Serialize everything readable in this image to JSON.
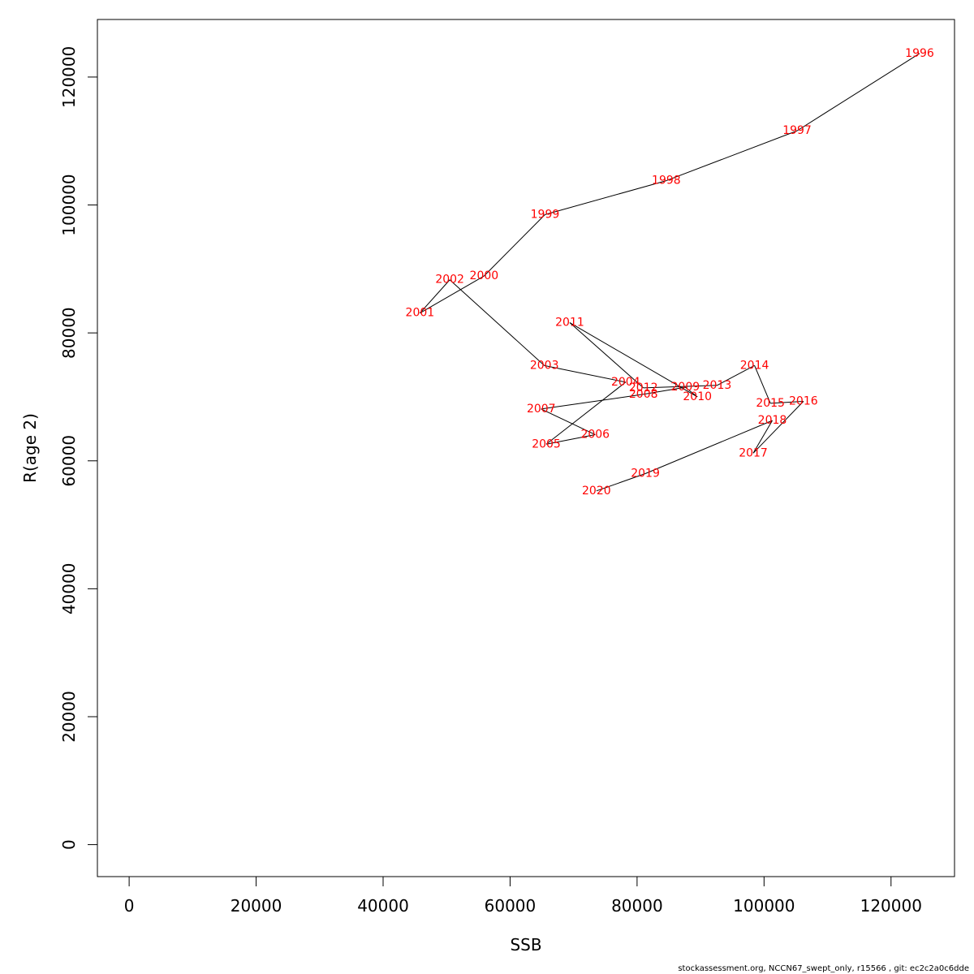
{
  "chart_data": {
    "type": "line",
    "xlabel": "SSB",
    "ylabel": "R(age 2)",
    "xlim": [
      -5000,
      130000
    ],
    "ylim": [
      -5000,
      129000
    ],
    "x_ticks": [
      0,
      20000,
      40000,
      60000,
      80000,
      100000,
      120000
    ],
    "y_ticks": [
      0,
      20000,
      40000,
      60000,
      80000,
      100000,
      120000
    ],
    "grid": false,
    "line_color": "#000000",
    "label_color": "#ff0000",
    "points": [
      {
        "label": "1996",
        "x": 124500,
        "y": 123700
      },
      {
        "label": "1997",
        "x": 105200,
        "y": 111600
      },
      {
        "label": "1998",
        "x": 84600,
        "y": 103800
      },
      {
        "label": "1999",
        "x": 65500,
        "y": 98500
      },
      {
        "label": "2000",
        "x": 55900,
        "y": 88900
      },
      {
        "label": "2001",
        "x": 45800,
        "y": 83100
      },
      {
        "label": "2002",
        "x": 50500,
        "y": 88300
      },
      {
        "label": "2003",
        "x": 65400,
        "y": 74900
      },
      {
        "label": "2004",
        "x": 78200,
        "y": 72300
      },
      {
        "label": "2005",
        "x": 65700,
        "y": 62600
      },
      {
        "label": "2006",
        "x": 73400,
        "y": 64100
      },
      {
        "label": "2007",
        "x": 64900,
        "y": 68100
      },
      {
        "label": "2008",
        "x": 81000,
        "y": 70400
      },
      {
        "label": "2009",
        "x": 87600,
        "y": 71500
      },
      {
        "label": "2010",
        "x": 89500,
        "y": 70000
      },
      {
        "label": "2011",
        "x": 69400,
        "y": 81600
      },
      {
        "label": "2012",
        "x": 81000,
        "y": 71400
      },
      {
        "label": "2013",
        "x": 92600,
        "y": 71800
      },
      {
        "label": "2014",
        "x": 98500,
        "y": 74900
      },
      {
        "label": "2015",
        "x": 101000,
        "y": 69000
      },
      {
        "label": "2016",
        "x": 106200,
        "y": 69300
      },
      {
        "label": "2017",
        "x": 98300,
        "y": 61200
      },
      {
        "label": "2018",
        "x": 101300,
        "y": 66300
      },
      {
        "label": "2019",
        "x": 81300,
        "y": 58000
      },
      {
        "label": "2020",
        "x": 73600,
        "y": 55300
      }
    ]
  },
  "footer": {
    "text": "stockassessment.org, NCCN67_swept_only, r15566 , git: ec2c2a0c6dde"
  }
}
